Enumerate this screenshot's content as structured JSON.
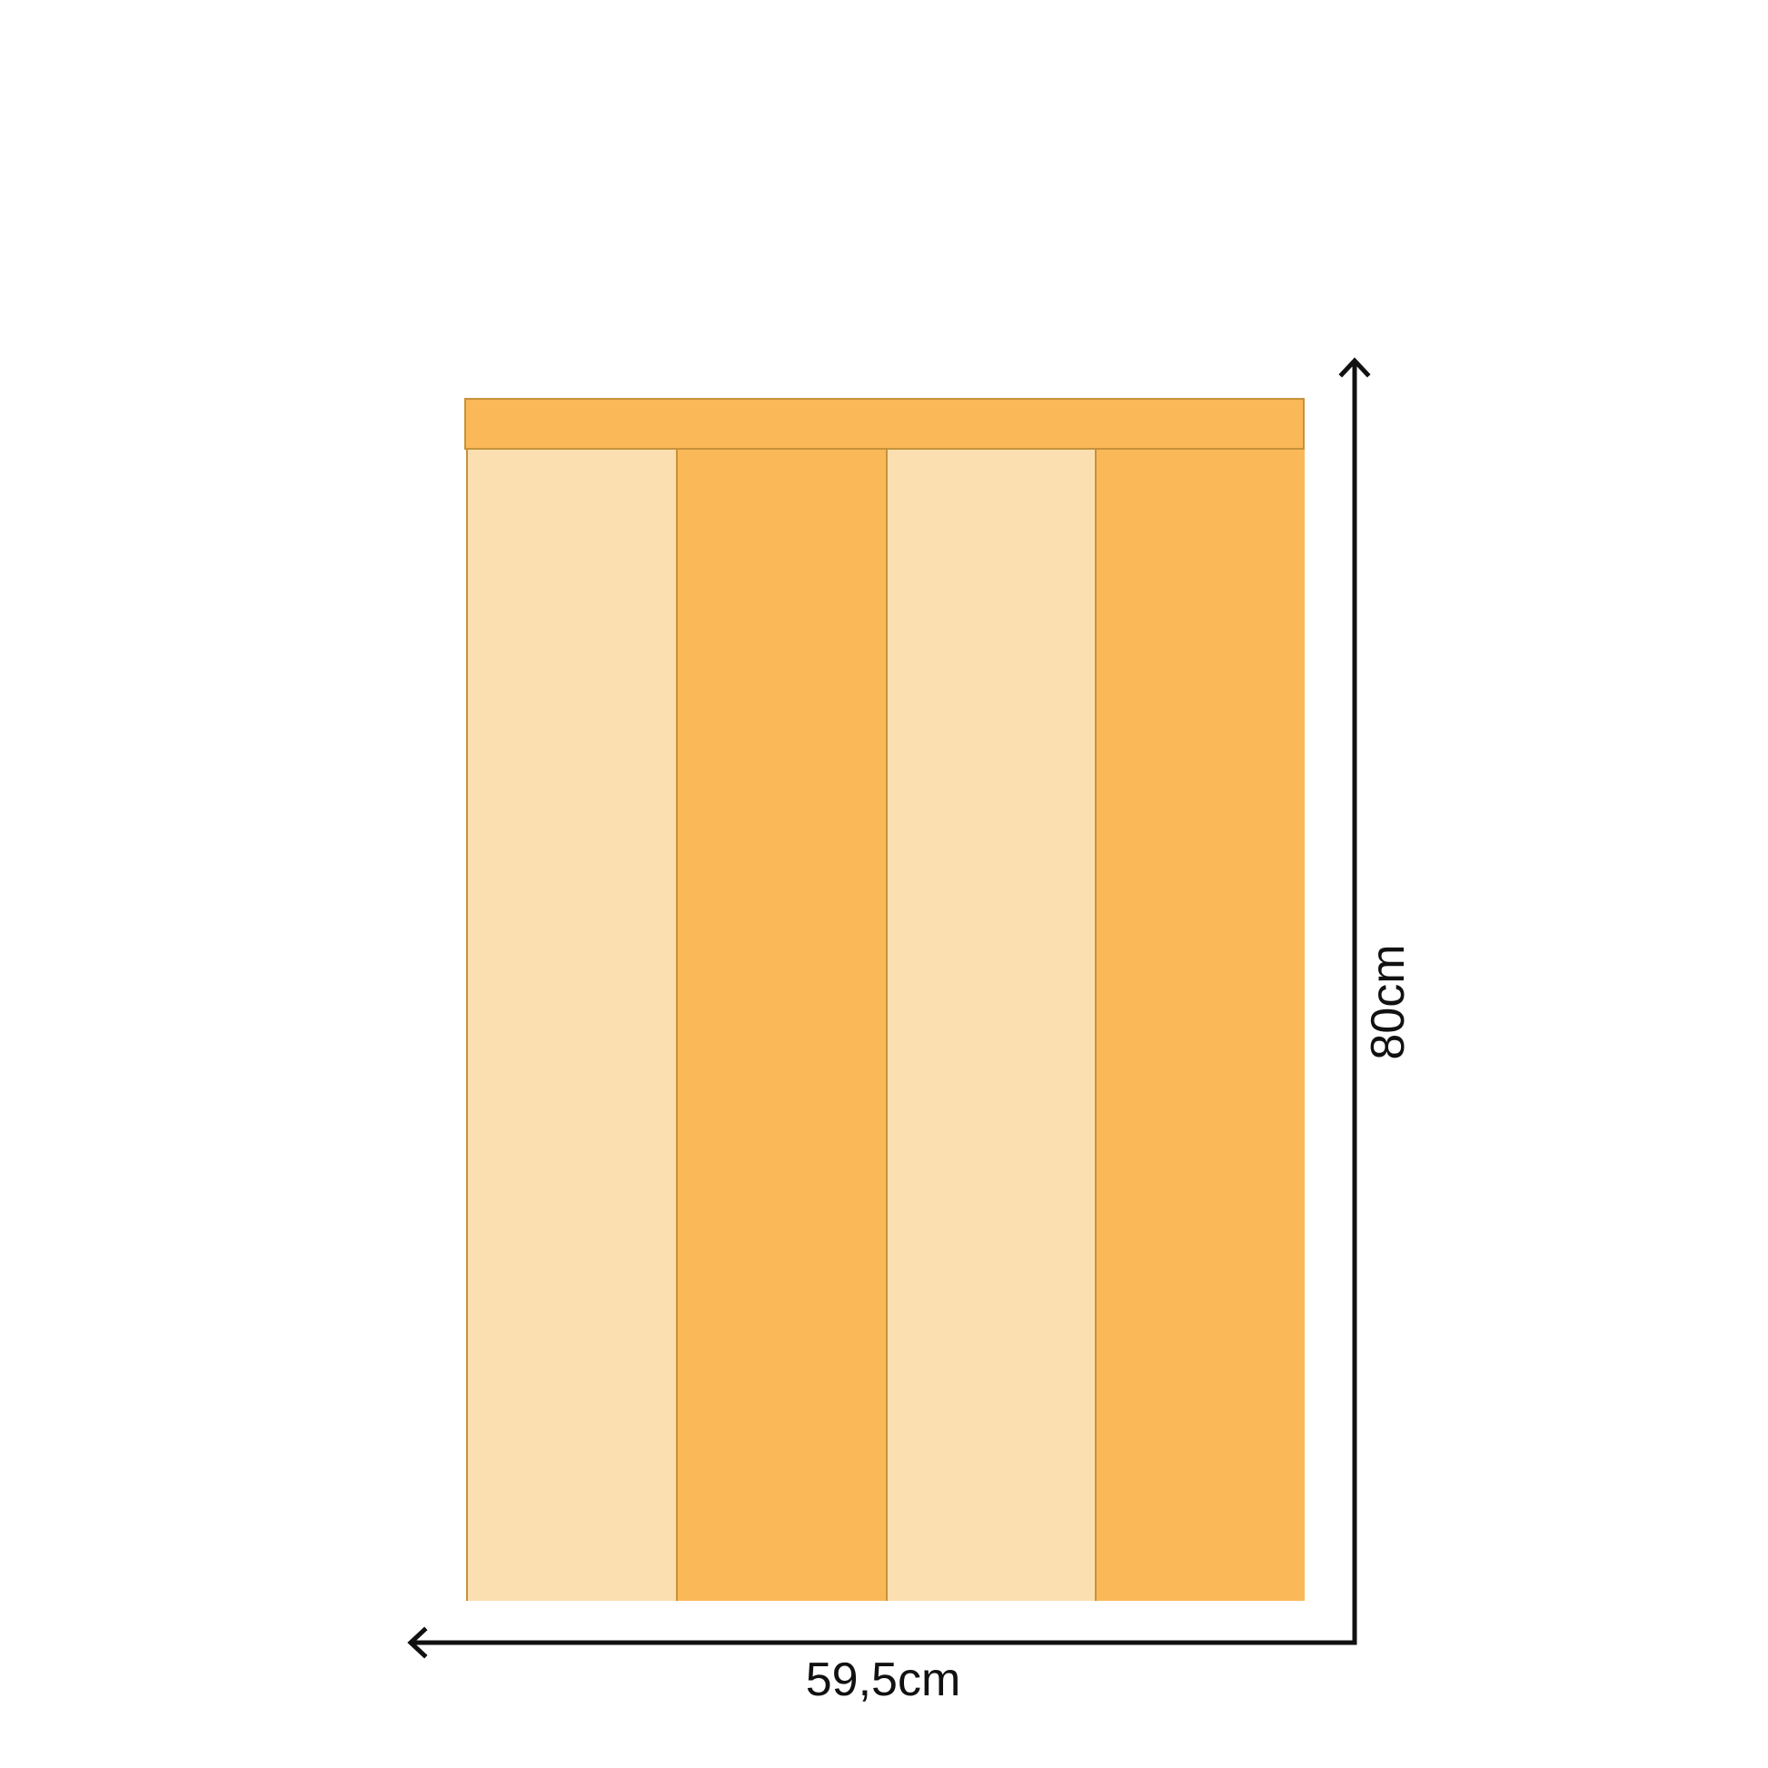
{
  "panel": {
    "header_bar": {
      "fill": "#fbb858",
      "border": "#c6923b"
    },
    "stripes": [
      {
        "tone": "light",
        "fill": "#fcdfb0"
      },
      {
        "tone": "dark",
        "fill": "#fbb858"
      },
      {
        "tone": "light",
        "fill": "#fcdfb0"
      },
      {
        "tone": "dark",
        "fill": "#fbb858"
      }
    ],
    "divider_color": "#c6923b"
  },
  "dimensions": {
    "height_label": "80cm",
    "width_label": "59,5cm",
    "line_color": "#111111",
    "text_color": "#111111"
  }
}
